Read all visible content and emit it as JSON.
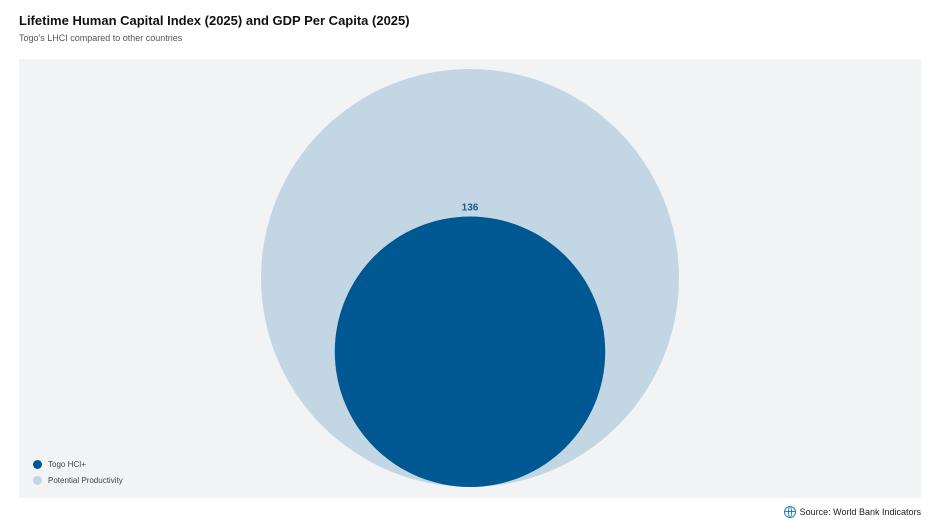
{
  "header": {
    "title": "Lifetime Human Capital Index (2025) and GDP Per Capita (2025)",
    "subtitle": "Togo's LHCI compared to other countries"
  },
  "footer": {
    "source": "Source: World Bank Indicators",
    "source_icon": "globe-icon"
  },
  "colors": {
    "togo": "#005892",
    "potential": "#c3d6e3",
    "label": "#1a5a8c"
  },
  "chart_data": {
    "type": "bubble",
    "title": "Lifetime Human Capital Index (2025) and GDP Per Capita (2025)",
    "subtitle": "Togo's LHCI compared to other countries",
    "legend_position": "bottom-left",
    "series": [
      {
        "name": "Togo HCI+",
        "relative_size": 0.647,
        "label": "136",
        "color": "#005892"
      },
      {
        "name": "Potential Productivity",
        "relative_size": 1.0,
        "color": "#c3d6e3"
      }
    ]
  }
}
